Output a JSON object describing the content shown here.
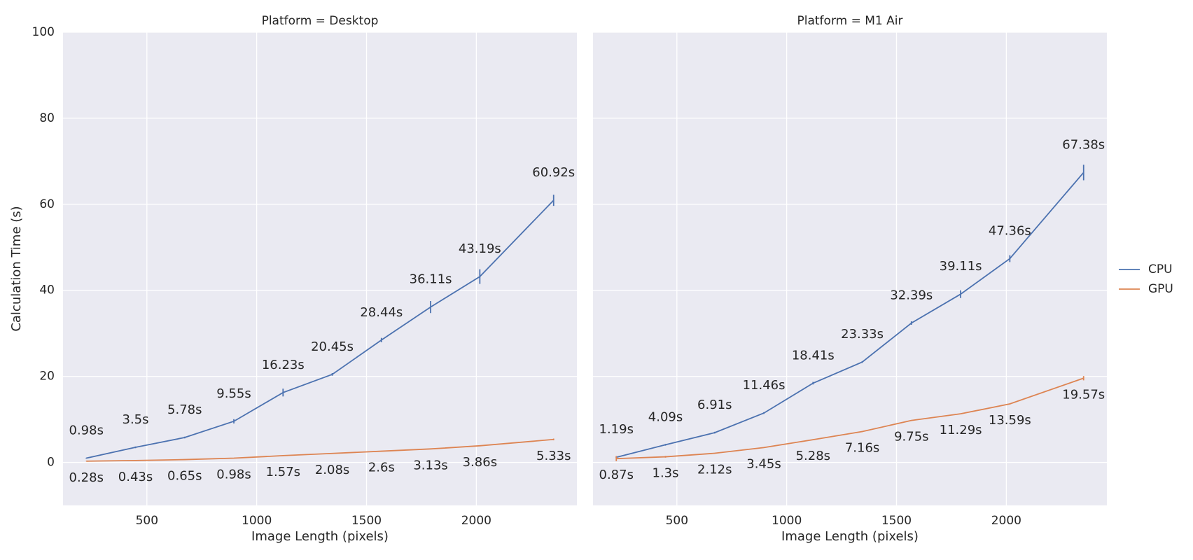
{
  "chart_data": [
    {
      "type": "line",
      "title": "Platform = Desktop",
      "xlabel": "Image Length (pixels)",
      "ylabel": "Calculation Time (s)",
      "x": [
        224,
        448,
        672,
        896,
        1120,
        1344,
        1568,
        1792,
        2016,
        2352
      ],
      "series": [
        {
          "name": "CPU",
          "color": "#4c72b0",
          "values": [
            0.98,
            3.5,
            5.78,
            9.55,
            16.23,
            20.45,
            28.44,
            36.11,
            43.19,
            60.92
          ],
          "value_labels": [
            "0.98s",
            "3.5s",
            "5.78s",
            "9.55s",
            "16.23s",
            "20.45s",
            "28.44s",
            "36.11s",
            "43.19s",
            "60.92s"
          ],
          "errors": [
            0.1,
            0.2,
            0.2,
            0.5,
            0.9,
            0.3,
            0.5,
            1.4,
            1.7,
            1.3
          ]
        },
        {
          "name": "GPU",
          "color": "#dd8452",
          "values": [
            0.28,
            0.43,
            0.65,
            0.98,
            1.57,
            2.08,
            2.6,
            3.13,
            3.86,
            5.33
          ],
          "value_labels": [
            "0.28s",
            "0.43s",
            "0.65s",
            "0.98s",
            "1.57s",
            "2.08s",
            "2.6s",
            "3.13s",
            "3.86s",
            "5.33s"
          ],
          "errors": [
            0.05,
            0.05,
            0.05,
            0.05,
            0.1,
            0.1,
            0.1,
            0.1,
            0.1,
            0.2
          ]
        }
      ],
      "xlim": [
        118,
        2458
      ],
      "ylim": [
        -10,
        100
      ],
      "xticks": [
        500,
        1000,
        1500,
        2000
      ],
      "yticks": [
        0,
        20,
        40,
        60,
        80,
        100
      ],
      "grid": true,
      "legend": "right"
    },
    {
      "type": "line",
      "title": "Platform = M1 Air",
      "xlabel": "Image Length (pixels)",
      "x": [
        224,
        448,
        672,
        896,
        1120,
        1344,
        1568,
        1792,
        2016,
        2352
      ],
      "series": [
        {
          "color": "#4c72b0",
          "values": [
            1.19,
            4.09,
            6.91,
            11.46,
            18.41,
            23.33,
            32.39,
            39.11,
            47.36,
            67.38
          ],
          "value_labels": [
            "1.19s",
            "4.09s",
            "6.91s",
            "11.46s",
            "18.41s",
            "23.33s",
            "32.39s",
            "39.11s",
            "47.36s",
            "67.38s"
          ],
          "errors": [
            0.1,
            0.2,
            0.2,
            0.2,
            0.3,
            0.2,
            0.4,
            0.9,
            0.8,
            1.8
          ]
        },
        {
          "color": "#dd8452",
          "values": [
            0.87,
            1.3,
            2.12,
            3.45,
            5.28,
            7.16,
            9.75,
            11.29,
            13.59,
            19.57
          ],
          "value_labels": [
            "0.87s",
            "1.3s",
            "2.12s",
            "3.45s",
            "5.28s",
            "7.16s",
            "9.75s",
            "11.29s",
            "13.59s",
            "19.57s"
          ],
          "errors": [
            0.6,
            0.2,
            0.1,
            0.1,
            0.1,
            0.1,
            0.1,
            0.1,
            0.1,
            0.5
          ]
        }
      ],
      "xlim": [
        118,
        2458
      ],
      "ylim": [
        -10,
        100
      ],
      "xticks": [
        500,
        1000,
        1500,
        2000
      ],
      "yticks": [
        0,
        20,
        40,
        60,
        80,
        100
      ],
      "grid": true
    }
  ]
}
